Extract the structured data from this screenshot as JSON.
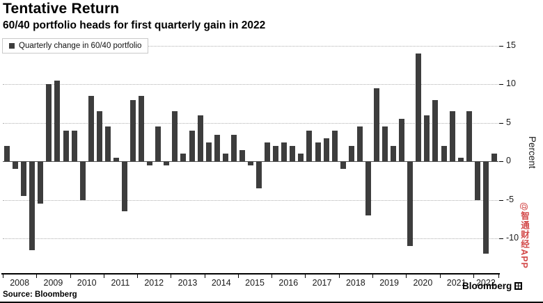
{
  "header": {
    "title": "Tentative Return",
    "subtitle": "60/40 portfolio heads for first quarterly gain in 2022"
  },
  "legend": {
    "label": "Quarterly change in 60/40 portfolio",
    "swatch_color": "#3d3d3d"
  },
  "y_axis": {
    "title": "Percent",
    "ticks": [
      15,
      10,
      5,
      0,
      -5,
      -10
    ]
  },
  "x_axis": {
    "year_labels": [
      "2008",
      "2009",
      "2010",
      "2011",
      "2012",
      "2013",
      "2014",
      "2015",
      "2016",
      "2017",
      "2018",
      "2019",
      "2020",
      "2021",
      "2022"
    ]
  },
  "footer": {
    "source": "Source: Bloomberg",
    "brand": "Bloomberg"
  },
  "watermark": "@智通财经APP",
  "colors": {
    "bar": "#3d3d3d",
    "grid": "#aeaeae",
    "zero_line": "#4d4d4d",
    "axis": "#000000",
    "watermark": "#d34a4a"
  },
  "chart_data": {
    "type": "bar",
    "title": "Tentative Return",
    "subtitle": "60/40 portfolio heads for first quarterly gain in 2022",
    "ylabel": "Percent",
    "ylim": [
      -14.5,
      16
    ],
    "yticks": [
      15,
      10,
      5,
      0,
      -5,
      -10
    ],
    "grid": "dotted-horizontal",
    "legend_position": "top-left",
    "bars_per_year": 4,
    "start_quarter": "2008 Q1",
    "end_quarter": "2022 Q3",
    "categories": [
      "2008",
      "2009",
      "2010",
      "2011",
      "2012",
      "2013",
      "2014",
      "2015",
      "2016",
      "2017",
      "2018",
      "2019",
      "2020",
      "2021",
      "2022"
    ],
    "series": [
      {
        "name": "Quarterly change in 60/40 portfolio",
        "values": [
          2,
          -1,
          -4.5,
          -11.5,
          -5.5,
          10,
          10.5,
          4,
          4,
          -5,
          8.5,
          6.5,
          4.5,
          0.5,
          -6.5,
          8,
          8.5,
          -0.5,
          4.5,
          -0.5,
          6.5,
          1,
          4,
          6,
          2.5,
          3.5,
          1,
          3.5,
          1.5,
          -0.5,
          -3.5,
          2.5,
          2,
          2.5,
          2,
          1,
          4,
          2.5,
          3,
          4,
          -1,
          2,
          4.5,
          -7,
          9.5,
          4.5,
          2,
          5.5,
          -11,
          14,
          6,
          8,
          2,
          6.5,
          0.5,
          6.5,
          -5,
          -12,
          1
        ]
      }
    ]
  }
}
